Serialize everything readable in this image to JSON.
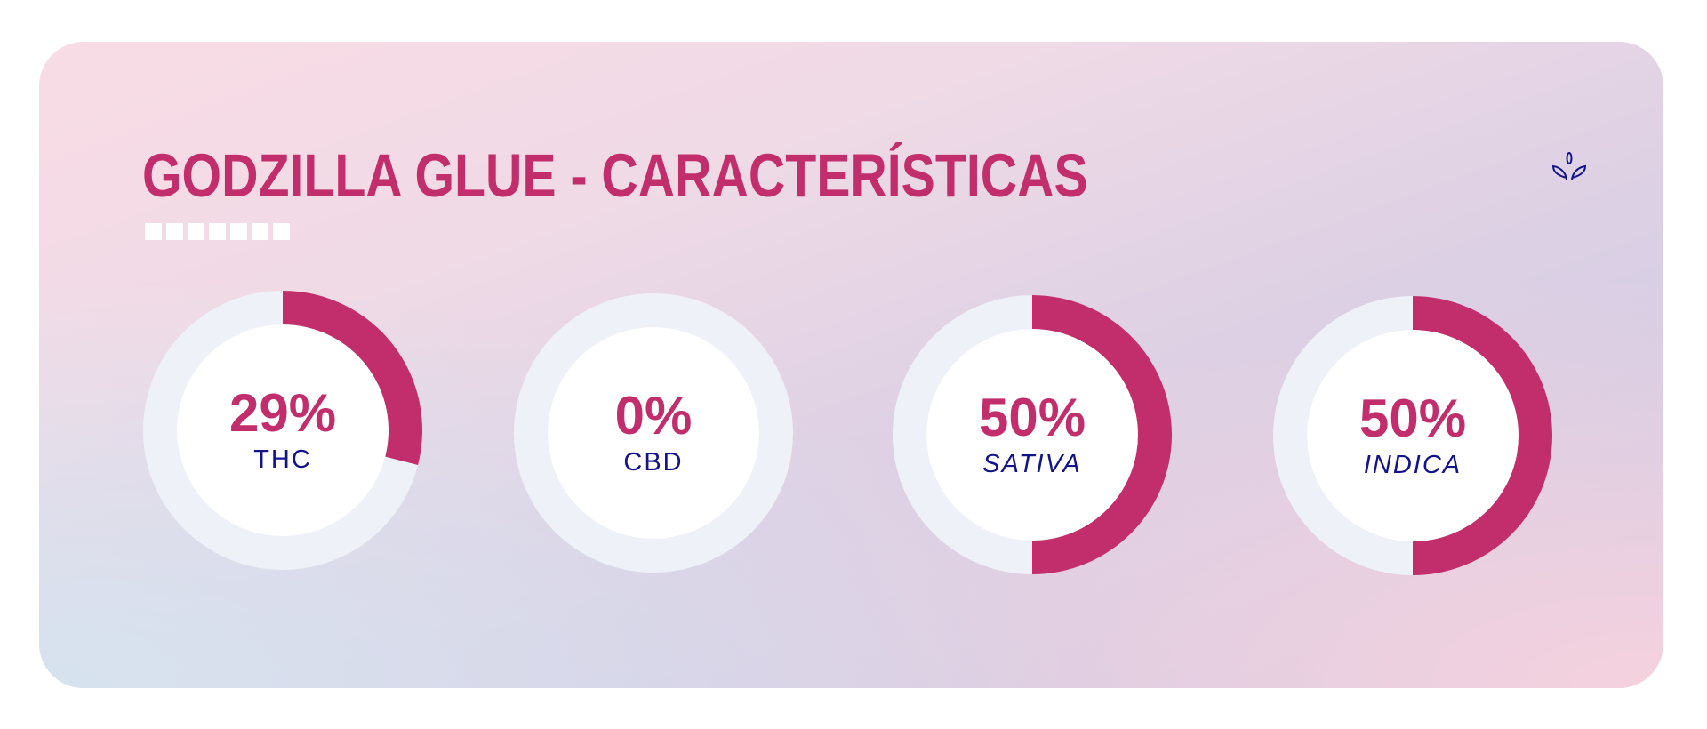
{
  "title": "GODZILLA GLUE - CARACTERÍSTICAS",
  "icon": "sprout-leaves-icon",
  "colors": {
    "accent": "#c22d6b",
    "track": "#eef1f7",
    "label": "#14148a"
  },
  "metrics": [
    {
      "value": 29,
      "display": "29%",
      "label": "THC",
      "italic": false
    },
    {
      "value": 0,
      "display": "0%",
      "label": "CBD",
      "italic": false
    },
    {
      "value": 50,
      "display": "50%",
      "label": "SATIVA",
      "italic": true
    },
    {
      "value": 50,
      "display": "50%",
      "label": "INDICA",
      "italic": true
    }
  ]
}
